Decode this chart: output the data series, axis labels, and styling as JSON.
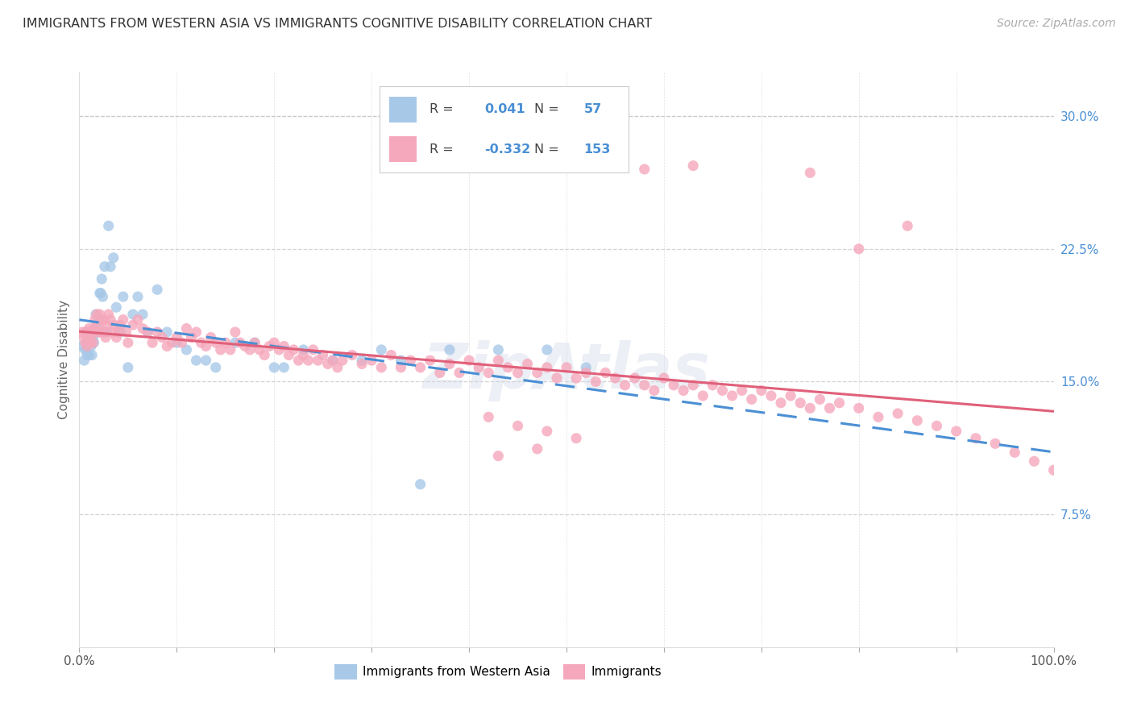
{
  "title": "IMMIGRANTS FROM WESTERN ASIA VS IMMIGRANTS COGNITIVE DISABILITY CORRELATION CHART",
  "source": "Source: ZipAtlas.com",
  "ylabel": "Cognitive Disability",
  "xlim": [
    0.0,
    1.0
  ],
  "ylim": [
    0.0,
    0.325
  ],
  "yticks": [
    0.075,
    0.15,
    0.225,
    0.3
  ],
  "ytick_labels": [
    "7.5%",
    "15.0%",
    "22.5%",
    "30.0%"
  ],
  "xticks": [
    0.0,
    0.1,
    0.2,
    0.3,
    0.4,
    0.5,
    0.6,
    0.7,
    0.8,
    0.9,
    1.0
  ],
  "xtick_labels_show": [
    "0.0%",
    "100.0%"
  ],
  "grid_color": "#c8c8c8",
  "background_color": "#ffffff",
  "series1_color": "#a8c8e8",
  "series2_color": "#f5a8bc",
  "line1_color": "#4a8fd4",
  "line2_color": "#e0607a",
  "R1": 0.041,
  "N1": 57,
  "R2": -0.332,
  "N2": 153,
  "legend_label1": "Immigrants from Western Asia",
  "legend_label2": "Immigrants",
  "watermark": "ZipAtlas",
  "series1_x": [
    0.003,
    0.005,
    0.006,
    0.007,
    0.008,
    0.009,
    0.01,
    0.01,
    0.011,
    0.012,
    0.013,
    0.014,
    0.015,
    0.016,
    0.017,
    0.018,
    0.019,
    0.02,
    0.021,
    0.022,
    0.023,
    0.024,
    0.025,
    0.026,
    0.028,
    0.03,
    0.032,
    0.035,
    0.038,
    0.042,
    0.045,
    0.05,
    0.055,
    0.06,
    0.065,
    0.07,
    0.08,
    0.09,
    0.1,
    0.11,
    0.12,
    0.13,
    0.14,
    0.16,
    0.18,
    0.2,
    0.21,
    0.23,
    0.26,
    0.29,
    0.31,
    0.33,
    0.35,
    0.38,
    0.43,
    0.48,
    0.52
  ],
  "series1_y": [
    0.17,
    0.162,
    0.168,
    0.178,
    0.165,
    0.172,
    0.176,
    0.165,
    0.178,
    0.17,
    0.165,
    0.175,
    0.172,
    0.178,
    0.188,
    0.182,
    0.178,
    0.185,
    0.2,
    0.2,
    0.208,
    0.198,
    0.178,
    0.215,
    0.178,
    0.238,
    0.215,
    0.22,
    0.192,
    0.178,
    0.198,
    0.158,
    0.188,
    0.198,
    0.188,
    0.178,
    0.202,
    0.178,
    0.172,
    0.168,
    0.162,
    0.162,
    0.158,
    0.172,
    0.172,
    0.158,
    0.158,
    0.168,
    0.162,
    0.162,
    0.168,
    0.162,
    0.092,
    0.168,
    0.168,
    0.168,
    0.158
  ],
  "series2_x": [
    0.003,
    0.005,
    0.006,
    0.007,
    0.008,
    0.009,
    0.01,
    0.011,
    0.012,
    0.013,
    0.014,
    0.015,
    0.016,
    0.017,
    0.018,
    0.019,
    0.02,
    0.021,
    0.022,
    0.023,
    0.025,
    0.026,
    0.027,
    0.028,
    0.03,
    0.032,
    0.034,
    0.036,
    0.038,
    0.04,
    0.042,
    0.045,
    0.048,
    0.05,
    0.055,
    0.06,
    0.065,
    0.07,
    0.075,
    0.08,
    0.085,
    0.09,
    0.095,
    0.1,
    0.105,
    0.11,
    0.115,
    0.12,
    0.125,
    0.13,
    0.135,
    0.14,
    0.145,
    0.15,
    0.155,
    0.16,
    0.165,
    0.17,
    0.175,
    0.18,
    0.185,
    0.19,
    0.195,
    0.2,
    0.205,
    0.21,
    0.215,
    0.22,
    0.225,
    0.23,
    0.235,
    0.24,
    0.245,
    0.25,
    0.255,
    0.26,
    0.265,
    0.27,
    0.28,
    0.29,
    0.3,
    0.31,
    0.32,
    0.33,
    0.34,
    0.35,
    0.36,
    0.37,
    0.38,
    0.39,
    0.4,
    0.41,
    0.42,
    0.43,
    0.44,
    0.45,
    0.46,
    0.47,
    0.48,
    0.49,
    0.5,
    0.51,
    0.52,
    0.53,
    0.54,
    0.55,
    0.56,
    0.57,
    0.58,
    0.59,
    0.6,
    0.61,
    0.62,
    0.63,
    0.64,
    0.65,
    0.66,
    0.67,
    0.68,
    0.69,
    0.7,
    0.71,
    0.72,
    0.73,
    0.74,
    0.75,
    0.76,
    0.77,
    0.78,
    0.8,
    0.82,
    0.84,
    0.86,
    0.88,
    0.9,
    0.92,
    0.94,
    0.96,
    0.98,
    1.0,
    0.58,
    0.63,
    0.75,
    0.8,
    0.85,
    0.42,
    0.45,
    0.48,
    0.51,
    0.43,
    0.47
  ],
  "series2_y": [
    0.178,
    0.175,
    0.172,
    0.178,
    0.17,
    0.175,
    0.18,
    0.175,
    0.172,
    0.178,
    0.172,
    0.18,
    0.185,
    0.178,
    0.188,
    0.178,
    0.182,
    0.188,
    0.178,
    0.185,
    0.185,
    0.178,
    0.175,
    0.182,
    0.188,
    0.185,
    0.178,
    0.182,
    0.175,
    0.178,
    0.182,
    0.185,
    0.178,
    0.172,
    0.182,
    0.185,
    0.18,
    0.178,
    0.172,
    0.178,
    0.175,
    0.17,
    0.172,
    0.175,
    0.172,
    0.18,
    0.175,
    0.178,
    0.172,
    0.17,
    0.175,
    0.172,
    0.168,
    0.172,
    0.168,
    0.178,
    0.172,
    0.17,
    0.168,
    0.172,
    0.168,
    0.165,
    0.17,
    0.172,
    0.168,
    0.17,
    0.165,
    0.168,
    0.162,
    0.165,
    0.162,
    0.168,
    0.162,
    0.165,
    0.16,
    0.162,
    0.158,
    0.162,
    0.165,
    0.16,
    0.162,
    0.158,
    0.165,
    0.158,
    0.162,
    0.158,
    0.162,
    0.155,
    0.16,
    0.155,
    0.162,
    0.158,
    0.155,
    0.162,
    0.158,
    0.155,
    0.16,
    0.155,
    0.158,
    0.152,
    0.158,
    0.152,
    0.155,
    0.15,
    0.155,
    0.152,
    0.148,
    0.152,
    0.148,
    0.145,
    0.152,
    0.148,
    0.145,
    0.148,
    0.142,
    0.148,
    0.145,
    0.142,
    0.145,
    0.14,
    0.145,
    0.142,
    0.138,
    0.142,
    0.138,
    0.135,
    0.14,
    0.135,
    0.138,
    0.135,
    0.13,
    0.132,
    0.128,
    0.125,
    0.122,
    0.118,
    0.115,
    0.11,
    0.105,
    0.1,
    0.27,
    0.272,
    0.268,
    0.225,
    0.238,
    0.13,
    0.125,
    0.122,
    0.118,
    0.108,
    0.112
  ]
}
